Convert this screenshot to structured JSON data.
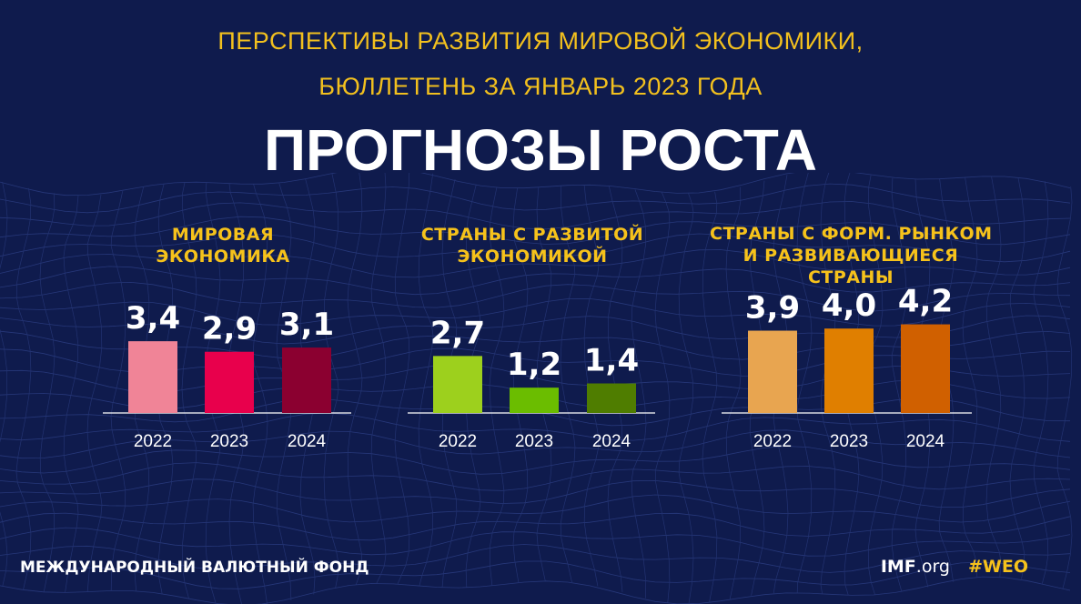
{
  "header": {
    "subtitle_line1": "ПЕРСПЕКТИВЫ РАЗВИТИЯ МИРОВОЙ ЭКОНОМИКИ,",
    "subtitle_line2": "БЮЛЛЕТЕНЬ ЗА ЯНВАРЬ 2023 ГОДА",
    "title": "ПРОГНОЗЫ РОСТА"
  },
  "colors": {
    "background": "#0f1b4d",
    "accent": "#f6c21b",
    "world": [
      "#f08497",
      "#e8004c",
      "#8b0030"
    ],
    "advanced": [
      "#9dd01d",
      "#6bbd00",
      "#4f7d00"
    ],
    "emerging": [
      "#e8a550",
      "#e07f00",
      "#d06000"
    ]
  },
  "chart_data": [
    {
      "type": "bar",
      "title_lines": [
        "МИРОВАЯ",
        "ЭКОНОМИКА"
      ],
      "categories": [
        "2022",
        "2023",
        "2024"
      ],
      "values": [
        3.4,
        2.9,
        3.1
      ],
      "value_labels": [
        "3,4",
        "2,9",
        "3,1"
      ]
    },
    {
      "type": "bar",
      "title_lines": [
        "СТРАНЫ С РАЗВИТОЙ",
        "ЭКОНОМИКОЙ"
      ],
      "categories": [
        "2022",
        "2023",
        "2024"
      ],
      "values": [
        2.7,
        1.2,
        1.4
      ],
      "value_labels": [
        "2,7",
        "1,2",
        "1,4"
      ]
    },
    {
      "type": "bar",
      "title_lines": [
        "СТРАНЫ С ФОРМ. РЫНКОМ",
        "И РАЗВИВАЮЩИЕСЯ",
        "СТРАНЫ"
      ],
      "categories": [
        "2022",
        "2023",
        "2024"
      ],
      "values": [
        3.9,
        4.0,
        4.2
      ],
      "value_labels": [
        "3,9",
        "4,0",
        "4,2"
      ]
    }
  ],
  "footer": {
    "org_name": "МЕЖДУНАРОДНЫЙ ВАЛЮТНЫЙ ФОНД",
    "site_bold": "IMF",
    "site_rest": ".org",
    "hashtag": "#WEO"
  }
}
